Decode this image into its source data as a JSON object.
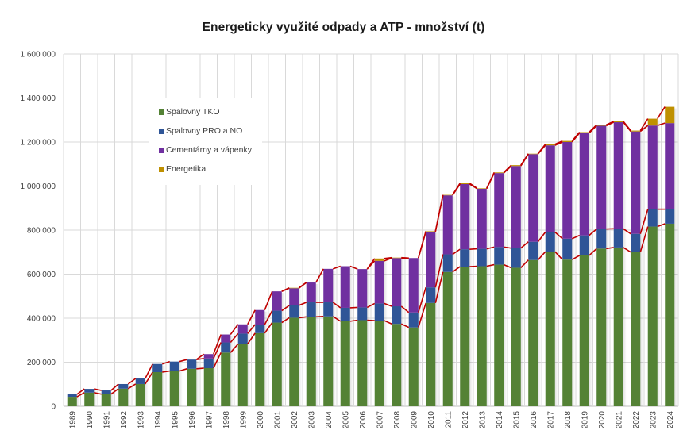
{
  "chart_data": {
    "type": "bar",
    "stacked": true,
    "title": "Energeticky využité odpady a ATP - množství (t)",
    "xlabel": "",
    "ylabel": "",
    "ylim": [
      0,
      1600000
    ],
    "yticks": [
      0,
      200000,
      400000,
      600000,
      800000,
      1000000,
      1200000,
      1400000,
      1600000
    ],
    "ytick_labels": [
      "0",
      "200 000",
      "400 000",
      "600 000",
      "800 000",
      "1 000 000",
      "1 200 000",
      "1 400 000",
      "1 600 000"
    ],
    "grid": true,
    "legend_position": "upper-left-inside",
    "connector_lines": true,
    "connector_color": "#c00000",
    "categories": [
      "1989",
      "1990",
      "1991",
      "1992",
      "1993",
      "1994",
      "1995",
      "1996",
      "1997",
      "1998",
      "1999",
      "2000",
      "2001",
      "2002",
      "2003",
      "2004",
      "2005",
      "2006",
      "2007",
      "2008",
      "2009",
      "2010",
      "2011",
      "2012",
      "2013",
      "2014",
      "2015",
      "2016",
      "2017",
      "2018",
      "2019",
      "2020",
      "2021",
      "2022",
      "2023",
      "2024"
    ],
    "series": [
      {
        "name": "Spalovny TKO",
        "color": "#548235",
        "values": [
          43000,
          62000,
          55000,
          80000,
          101000,
          155000,
          160000,
          170000,
          173000,
          244000,
          283000,
          332000,
          380000,
          402000,
          406000,
          408000,
          386000,
          391000,
          389000,
          374000,
          358000,
          469000,
          610000,
          634000,
          636000,
          643000,
          629000,
          664000,
          702000,
          666000,
          685000,
          716000,
          721000,
          700000,
          816000,
          829000
        ]
      },
      {
        "name": "Spalovny PRO a NO",
        "color": "#2f5597",
        "values": [
          11000,
          17000,
          17000,
          21000,
          25000,
          37000,
          43000,
          42000,
          44000,
          46000,
          47000,
          39000,
          54000,
          56000,
          66000,
          64000,
          61000,
          58000,
          78000,
          80000,
          68000,
          71000,
          80000,
          79000,
          79000,
          80000,
          89000,
          83000,
          89000,
          95000,
          91000,
          89000,
          85000,
          83000,
          79000,
          66000
        ]
      },
      {
        "name": "Cementárny a vápenky",
        "color": "#7030a0",
        "values": [
          0,
          0,
          0,
          0,
          0,
          0,
          0,
          0,
          20000,
          36000,
          42000,
          66000,
          88000,
          78000,
          90000,
          152000,
          189000,
          174000,
          193000,
          219000,
          247000,
          253000,
          268000,
          296000,
          273000,
          336000,
          373000,
          398000,
          394000,
          439000,
          465000,
          469000,
          484000,
          465000,
          380000,
          391000
        ]
      },
      {
        "name": "Energetika",
        "color": "#bf9000",
        "values": [
          0,
          0,
          0,
          0,
          0,
          0,
          0,
          0,
          0,
          0,
          0,
          0,
          0,
          2000,
          0,
          0,
          0,
          0,
          11000,
          2000,
          0,
          2000,
          2000,
          4000,
          2000,
          3000,
          4000,
          2000,
          5000,
          5000,
          4000,
          4000,
          4000,
          4000,
          31000,
          74000
        ]
      }
    ]
  }
}
